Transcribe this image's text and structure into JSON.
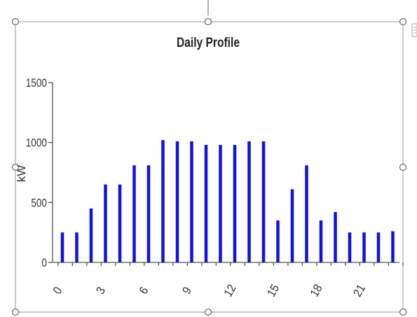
{
  "colors": {
    "bar": "#1010e8",
    "frame": "#9a9a9a",
    "axis": "#555555"
  },
  "chart_data": {
    "type": "bar",
    "title": "Daily Profile",
    "ylabel": "kW",
    "xlabel": "",
    "x": [
      0,
      1,
      2,
      3,
      4,
      5,
      6,
      7,
      8,
      9,
      10,
      11,
      12,
      13,
      14,
      15,
      16,
      17,
      18,
      19,
      20,
      21,
      22,
      23
    ],
    "values": [
      250,
      250,
      450,
      650,
      650,
      810,
      810,
      1020,
      1010,
      1010,
      980,
      980,
      980,
      1010,
      1010,
      350,
      610,
      810,
      350,
      420,
      250,
      250,
      250,
      260
    ],
    "xticks": [
      "0",
      "3",
      "6",
      "9",
      "12",
      "15",
      "18",
      "21"
    ],
    "yticks": [
      "0",
      "500",
      "1000",
      "1500"
    ],
    "ylim": [
      0,
      1500
    ],
    "grid": false,
    "legend": "none"
  }
}
